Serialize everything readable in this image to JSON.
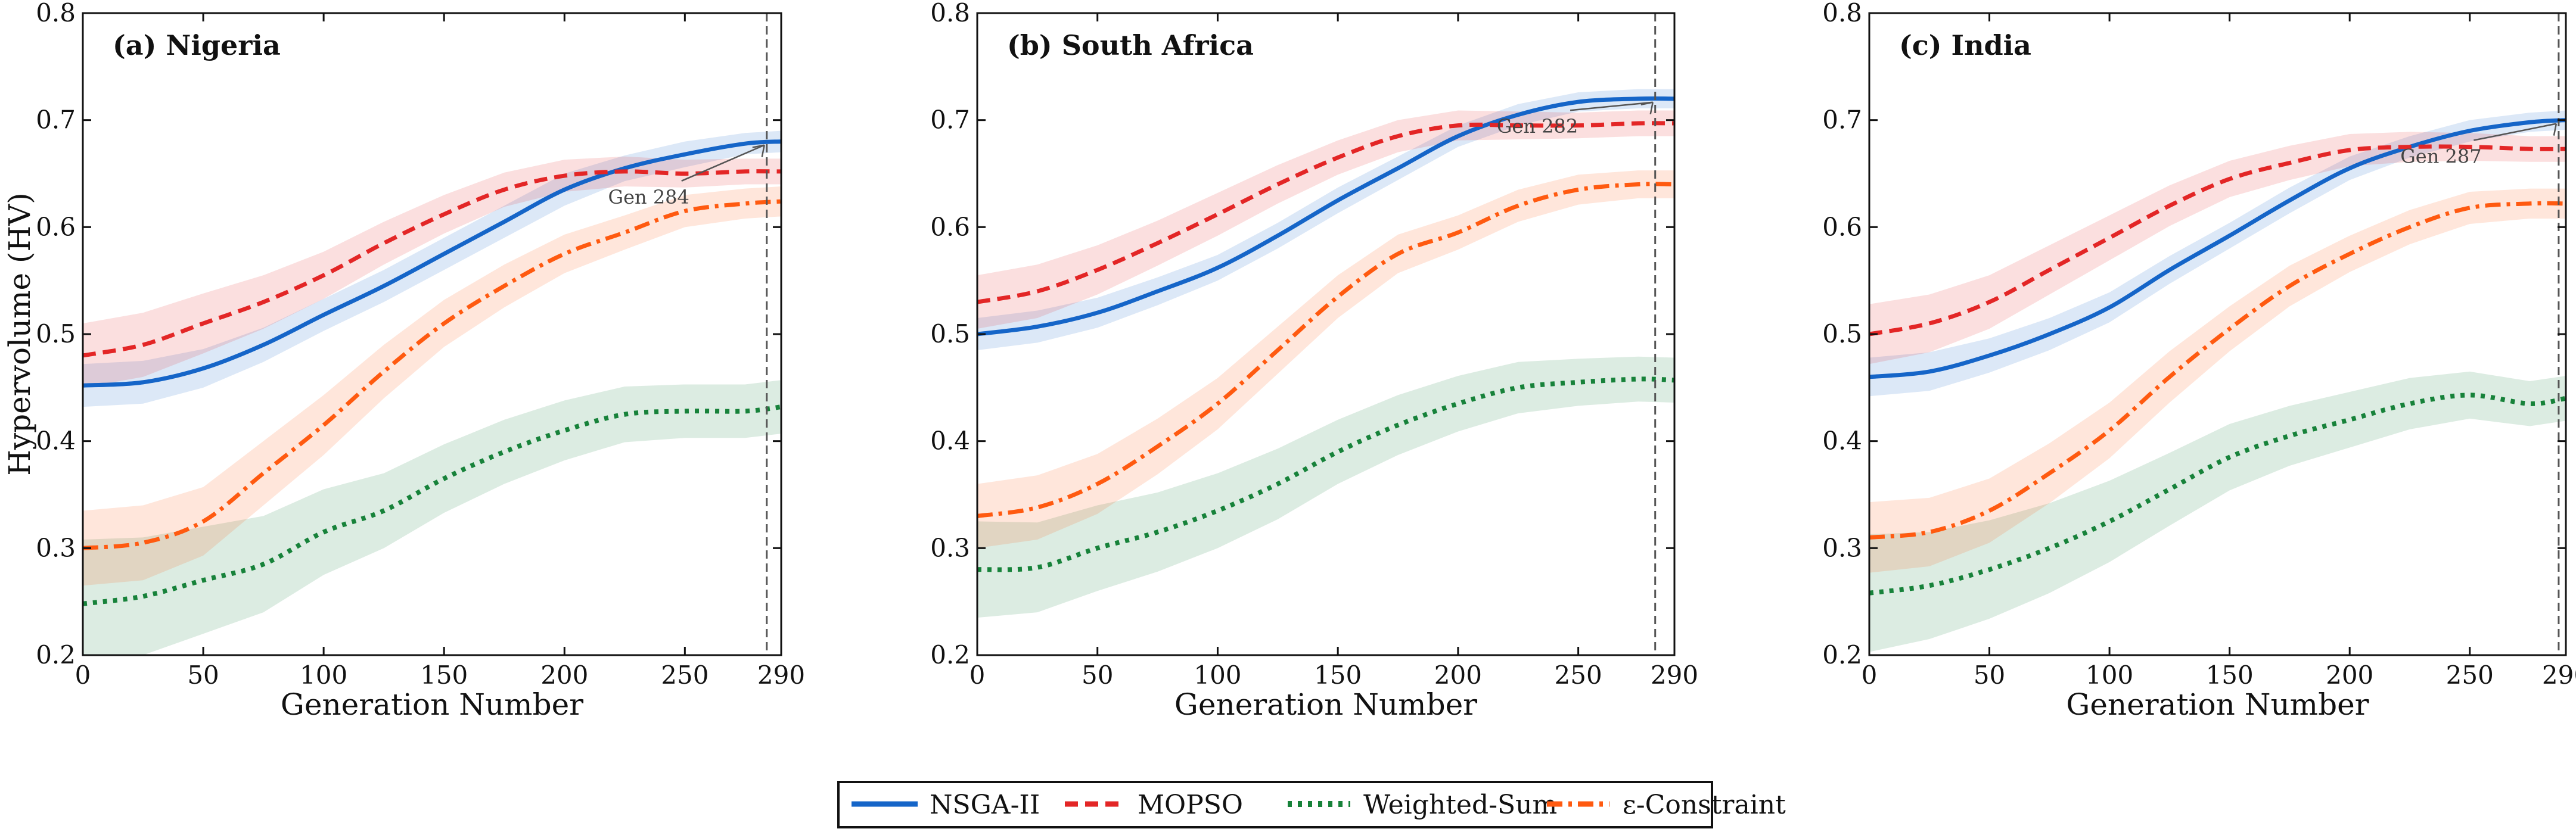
{
  "chart_data": [
    {
      "type": "line",
      "title": "(a) Nigeria",
      "xlabel": "Generation Number",
      "ylabel": "Hypervolume (HV)",
      "xlim": [
        0,
        290
      ],
      "ylim": [
        0.2,
        0.8
      ],
      "xticks": [
        "0",
        "50",
        "100",
        "150",
        "200",
        "250",
        "290"
      ],
      "yticks": [
        "0.2",
        "0.3",
        "0.4",
        "0.5",
        "0.6",
        "0.7",
        "0.8"
      ],
      "x": [
        0,
        25,
        50,
        75,
        100,
        125,
        150,
        175,
        200,
        225,
        250,
        275,
        290
      ],
      "series": [
        {
          "name": "NSGA-II",
          "values": [
            0.452,
            0.455,
            0.468,
            0.49,
            0.518,
            0.545,
            0.575,
            0.605,
            0.635,
            0.655,
            0.668,
            0.678,
            0.68
          ],
          "band": [
            0.02,
            0.02,
            0.018,
            0.016,
            0.015,
            0.015,
            0.015,
            0.015,
            0.015,
            0.012,
            0.012,
            0.01,
            0.01
          ]
        },
        {
          "name": "MOPSO",
          "values": [
            0.48,
            0.49,
            0.51,
            0.53,
            0.555,
            0.585,
            0.612,
            0.635,
            0.648,
            0.652,
            0.65,
            0.652,
            0.652
          ],
          "band": [
            0.03,
            0.03,
            0.028,
            0.025,
            0.022,
            0.02,
            0.018,
            0.016,
            0.015,
            0.014,
            0.013,
            0.012,
            0.012
          ]
        },
        {
          "name": "Weighted-Sum",
          "values": [
            0.248,
            0.255,
            0.27,
            0.285,
            0.315,
            0.335,
            0.365,
            0.39,
            0.41,
            0.425,
            0.428,
            0.428,
            0.432
          ],
          "band": [
            0.06,
            0.055,
            0.05,
            0.045,
            0.04,
            0.035,
            0.032,
            0.03,
            0.028,
            0.026,
            0.025,
            0.025,
            0.025
          ]
        },
        {
          "name": "ε-Constraint",
          "values": [
            0.3,
            0.305,
            0.325,
            0.37,
            0.415,
            0.465,
            0.51,
            0.545,
            0.575,
            0.595,
            0.615,
            0.622,
            0.624
          ],
          "band": [
            0.035,
            0.035,
            0.032,
            0.03,
            0.028,
            0.025,
            0.022,
            0.02,
            0.018,
            0.016,
            0.015,
            0.014,
            0.014
          ]
        }
      ],
      "vline_x": 284,
      "annotation": {
        "text": "Gen 284",
        "x": 284,
        "y": 0.68,
        "text_x": 235,
        "text_y": 0.622
      }
    },
    {
      "type": "line",
      "title": "(b) South Africa",
      "xlabel": "Generation Number",
      "ylabel": "",
      "xlim": [
        0,
        290
      ],
      "ylim": [
        0.2,
        0.8
      ],
      "xticks": [
        "0",
        "50",
        "100",
        "150",
        "200",
        "250",
        "290"
      ],
      "yticks": [
        "0.2",
        "0.3",
        "0.4",
        "0.5",
        "0.6",
        "0.7",
        "0.8"
      ],
      "x": [
        0,
        25,
        50,
        75,
        100,
        125,
        150,
        175,
        200,
        225,
        250,
        275,
        290
      ],
      "series": [
        {
          "name": "NSGA-II",
          "values": [
            0.5,
            0.507,
            0.52,
            0.54,
            0.562,
            0.592,
            0.625,
            0.655,
            0.685,
            0.705,
            0.717,
            0.72,
            0.72
          ],
          "band": [
            0.015,
            0.015,
            0.014,
            0.013,
            0.012,
            0.012,
            0.012,
            0.011,
            0.01,
            0.01,
            0.009,
            0.009,
            0.009
          ]
        },
        {
          "name": "MOPSO",
          "values": [
            0.53,
            0.54,
            0.56,
            0.585,
            0.612,
            0.64,
            0.665,
            0.685,
            0.695,
            0.695,
            0.695,
            0.697,
            0.697
          ],
          "band": [
            0.025,
            0.025,
            0.023,
            0.021,
            0.02,
            0.018,
            0.016,
            0.015,
            0.014,
            0.013,
            0.012,
            0.012,
            0.012
          ]
        },
        {
          "name": "Weighted-Sum",
          "values": [
            0.28,
            0.282,
            0.3,
            0.315,
            0.335,
            0.36,
            0.39,
            0.415,
            0.435,
            0.45,
            0.455,
            0.458,
            0.457
          ],
          "band": [
            0.045,
            0.042,
            0.04,
            0.037,
            0.035,
            0.033,
            0.03,
            0.028,
            0.026,
            0.024,
            0.022,
            0.021,
            0.021
          ]
        },
        {
          "name": "ε-Constraint",
          "values": [
            0.33,
            0.338,
            0.36,
            0.395,
            0.435,
            0.485,
            0.535,
            0.575,
            0.595,
            0.62,
            0.635,
            0.64,
            0.64
          ],
          "band": [
            0.03,
            0.03,
            0.028,
            0.026,
            0.024,
            0.022,
            0.02,
            0.018,
            0.016,
            0.015,
            0.014,
            0.013,
            0.013
          ]
        }
      ],
      "vline_x": 282,
      "annotation": {
        "text": "Gen 282",
        "x": 282,
        "y": 0.72,
        "text_x": 233,
        "text_y": 0.688
      }
    },
    {
      "type": "line",
      "title": "(c) India",
      "xlabel": "Generation Number",
      "ylabel": "",
      "xlim": [
        0,
        290
      ],
      "ylim": [
        0.2,
        0.8
      ],
      "xticks": [
        "0",
        "50",
        "100",
        "150",
        "200",
        "250",
        "290"
      ],
      "yticks": [
        "0.2",
        "0.3",
        "0.4",
        "0.5",
        "0.6",
        "0.7",
        "0.8"
      ],
      "x": [
        0,
        25,
        50,
        75,
        100,
        125,
        150,
        175,
        200,
        225,
        250,
        275,
        290
      ],
      "series": [
        {
          "name": "NSGA-II",
          "values": [
            0.46,
            0.465,
            0.48,
            0.5,
            0.525,
            0.56,
            0.592,
            0.625,
            0.655,
            0.675,
            0.69,
            0.698,
            0.7
          ],
          "band": [
            0.018,
            0.018,
            0.016,
            0.015,
            0.014,
            0.013,
            0.012,
            0.012,
            0.011,
            0.01,
            0.01,
            0.009,
            0.009
          ]
        },
        {
          "name": "MOPSO",
          "values": [
            0.5,
            0.51,
            0.53,
            0.56,
            0.59,
            0.62,
            0.645,
            0.66,
            0.672,
            0.675,
            0.675,
            0.673,
            0.673
          ],
          "band": [
            0.028,
            0.027,
            0.025,
            0.023,
            0.021,
            0.019,
            0.017,
            0.016,
            0.015,
            0.014,
            0.013,
            0.012,
            0.012
          ]
        },
        {
          "name": "Weighted-Sum",
          "values": [
            0.258,
            0.265,
            0.28,
            0.3,
            0.325,
            0.355,
            0.385,
            0.405,
            0.42,
            0.435,
            0.443,
            0.435,
            0.44
          ],
          "band": [
            0.055,
            0.05,
            0.046,
            0.042,
            0.038,
            0.034,
            0.031,
            0.028,
            0.026,
            0.024,
            0.022,
            0.021,
            0.021
          ]
        },
        {
          "name": "ε-Constraint",
          "values": [
            0.31,
            0.315,
            0.335,
            0.37,
            0.41,
            0.46,
            0.505,
            0.545,
            0.575,
            0.6,
            0.618,
            0.622,
            0.622
          ],
          "band": [
            0.033,
            0.032,
            0.03,
            0.028,
            0.026,
            0.024,
            0.021,
            0.019,
            0.017,
            0.016,
            0.015,
            0.014,
            0.014
          ]
        }
      ],
      "vline_x": 287,
      "annotation": {
        "text": "Gen 287",
        "x": 287,
        "y": 0.7,
        "text_x": 238,
        "text_y": 0.66
      }
    }
  ],
  "legend": {
    "placement": "bottom-center",
    "items": [
      "NSGA-II",
      "MOPSO",
      "Weighted-Sum",
      "ε-Constraint"
    ]
  },
  "colors": {
    "NSGA-II": "#1565c8",
    "MOPSO": "#e32626",
    "Weighted-Sum": "#17823a",
    "ε-Constraint": "#ff5a10"
  }
}
